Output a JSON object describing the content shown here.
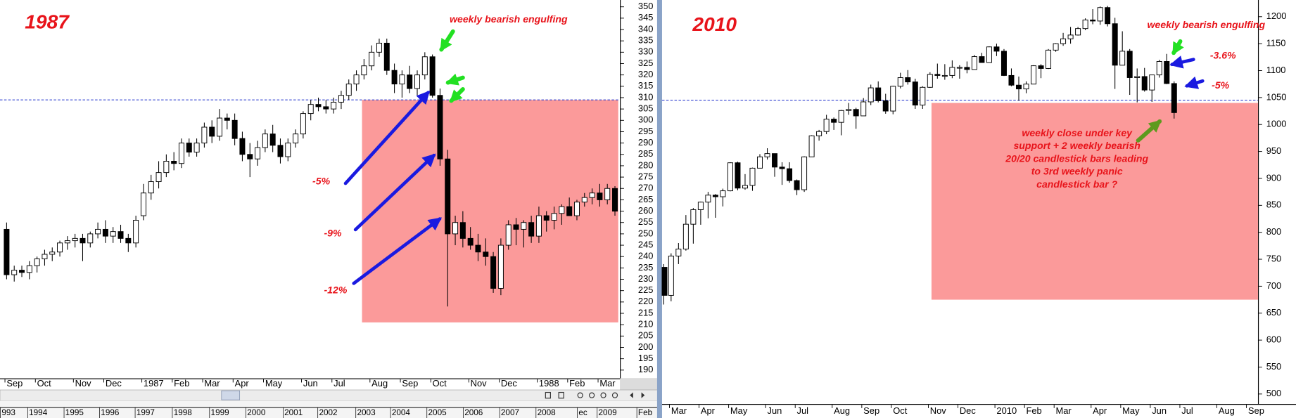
{
  "chart_data": [
    {
      "type": "candlestick",
      "title": "1987",
      "ylim": [
        186,
        353
      ],
      "yticks": [
        190,
        195,
        200,
        205,
        210,
        215,
        220,
        225,
        230,
        235,
        240,
        245,
        250,
        255,
        260,
        265,
        270,
        275,
        280,
        285,
        290,
        295,
        300,
        305,
        310,
        315,
        320,
        325,
        330,
        335,
        340,
        345,
        350
      ],
      "reference_line": 309,
      "reference_color": "#3040d0",
      "zone": [
        211,
        309
      ],
      "zone_color": "#fb9a9a",
      "up_color": "#ffffff",
      "down_color": "#000000",
      "annotations": [
        "weekly bearish engulfing",
        "-5%",
        "-9%",
        "-12%"
      ],
      "categories": [
        "Sep",
        null,
        null,
        null,
        "Oct",
        null,
        null,
        null,
        null,
        "Nov",
        null,
        null,
        null,
        "Dec",
        null,
        null,
        null,
        null,
        "1987",
        null,
        null,
        null,
        "Feb",
        null,
        null,
        null,
        "Mar",
        null,
        null,
        null,
        "Apr",
        null,
        null,
        null,
        "May",
        null,
        null,
        null,
        null,
        "Jun",
        null,
        null,
        null,
        "Jul",
        null,
        null,
        null,
        null,
        "Aug",
        null,
        null,
        null,
        "Sep",
        null,
        null,
        null,
        "Oct",
        null,
        null,
        null,
        null,
        "Nov",
        null,
        null,
        null,
        "Dec",
        null,
        null,
        null,
        null,
        "1988",
        null,
        null,
        null,
        "Feb",
        null,
        null,
        null,
        "Mar",
        null,
        null
      ],
      "ohlc": [
        [
          252,
          255,
          230,
          232
        ],
        [
          232,
          236,
          229,
          234
        ],
        [
          234,
          236,
          231,
          233
        ],
        [
          233,
          238,
          230,
          236
        ],
        [
          236,
          240,
          233,
          239
        ],
        [
          239,
          243,
          236,
          241
        ],
        [
          241,
          244,
          238,
          242
        ],
        [
          242,
          247,
          240,
          246
        ],
        [
          246,
          249,
          243,
          247
        ],
        [
          247,
          250,
          244,
          248
        ],
        [
          248,
          250,
          238,
          246
        ],
        [
          246,
          251,
          244,
          250
        ],
        [
          250,
          255,
          248,
          252
        ],
        [
          252,
          256,
          246,
          249
        ],
        [
          249,
          253,
          246,
          251
        ],
        [
          251,
          254,
          246,
          248
        ],
        [
          248,
          250,
          242,
          246
        ],
        [
          246,
          258,
          244,
          256
        ],
        [
          258,
          272,
          256,
          268
        ],
        [
          268,
          276,
          265,
          273
        ],
        [
          273,
          282,
          270,
          277
        ],
        [
          277,
          285,
          275,
          282
        ],
        [
          282,
          286,
          278,
          281
        ],
        [
          281,
          292,
          279,
          290
        ],
        [
          290,
          292,
          284,
          286
        ],
        [
          286,
          292,
          284,
          290
        ],
        [
          290,
          299,
          288,
          297
        ],
        [
          297,
          300,
          290,
          293
        ],
        [
          293,
          305,
          291,
          301
        ],
        [
          301,
          303,
          296,
          300
        ],
        [
          300,
          303,
          289,
          292
        ],
        [
          292,
          295,
          282,
          285
        ],
        [
          285,
          290,
          275,
          283
        ],
        [
          283,
          291,
          280,
          288
        ],
        [
          288,
          296,
          286,
          294
        ],
        [
          294,
          298,
          286,
          289
        ],
        [
          289,
          292,
          281,
          284
        ],
        [
          284,
          292,
          282,
          290
        ],
        [
          290,
          296,
          288,
          294
        ],
        [
          294,
          304,
          292,
          303
        ],
        [
          303,
          309,
          300,
          307
        ],
        [
          307,
          310,
          304,
          306
        ],
        [
          306,
          309,
          303,
          305
        ],
        [
          305,
          310,
          303,
          308
        ],
        [
          308,
          313,
          305,
          311
        ],
        [
          311,
          318,
          309,
          316
        ],
        [
          316,
          322,
          313,
          320
        ],
        [
          320,
          327,
          318,
          324
        ],
        [
          324,
          333,
          322,
          330
        ],
        [
          330,
          336,
          328,
          334
        ],
        [
          334,
          336,
          320,
          322
        ],
        [
          322,
          325,
          312,
          316
        ],
        [
          316,
          322,
          310,
          320
        ],
        [
          320,
          324,
          312,
          314
        ],
        [
          314,
          322,
          311,
          320
        ],
        [
          320,
          330,
          318,
          328
        ],
        [
          328,
          329,
          310,
          311
        ],
        [
          311,
          314,
          280,
          283
        ],
        [
          283,
          287,
          218,
          250
        ],
        [
          250,
          258,
          245,
          255
        ],
        [
          255,
          260,
          244,
          248
        ],
        [
          248,
          253,
          243,
          245
        ],
        [
          245,
          250,
          238,
          242
        ],
        [
          242,
          248,
          236,
          240
        ],
        [
          240,
          242,
          224,
          226
        ],
        [
          226,
          248,
          223,
          245
        ],
        [
          245,
          256,
          243,
          254
        ],
        [
          254,
          257,
          245,
          252
        ],
        [
          252,
          256,
          244,
          255
        ],
        [
          255,
          258,
          246,
          249
        ],
        [
          249,
          262,
          246,
          258
        ],
        [
          258,
          260,
          251,
          256
        ],
        [
          256,
          262,
          252,
          259
        ],
        [
          259,
          263,
          254,
          262
        ],
        [
          262,
          266,
          259,
          258
        ],
        [
          258,
          265,
          256,
          264
        ],
        [
          264,
          268,
          262,
          266
        ],
        [
          266,
          270,
          263,
          268
        ],
        [
          268,
          272,
          262,
          265
        ],
        [
          265,
          272,
          263,
          270
        ],
        [
          270,
          271,
          258,
          260
        ]
      ]
    },
    {
      "type": "candlestick",
      "title": "2010",
      "ylim": [
        480,
        1231
      ],
      "yticks": [
        500,
        550,
        600,
        650,
        700,
        750,
        800,
        850,
        900,
        950,
        1000,
        1050,
        1100,
        1150,
        1200
      ],
      "reference_line": 1045,
      "reference_color": "#3040d0",
      "zone": [
        675,
        1040
      ],
      "zone_color": "#fb9a9a",
      "up_color": "#ffffff",
      "down_color": "#000000",
      "annotations": [
        "weekly bearish engulfing",
        "-3.6%",
        "-5%"
      ],
      "note": [
        "weekly close under key",
        "support + 2 weekly bearish",
        "20/20 candlestick bars leading",
        "to 3rd weekly panic",
        "candlestick bar ?"
      ],
      "categories": [
        null,
        "Mar",
        null,
        null,
        null,
        "Apr",
        null,
        null,
        null,
        "May",
        null,
        null,
        null,
        null,
        "Jun",
        null,
        null,
        null,
        "Jul",
        null,
        null,
        null,
        null,
        "Aug",
        null,
        null,
        null,
        "Sep",
        null,
        null,
        null,
        "Oct",
        null,
        null,
        null,
        null,
        "Nov",
        null,
        null,
        null,
        "Dec",
        null,
        null,
        null,
        null,
        "2010",
        null,
        null,
        null,
        "Feb",
        null,
        null,
        null,
        "Mar",
        null,
        null,
        null,
        null,
        "Apr",
        null,
        null,
        null,
        "May",
        null,
        null,
        null,
        "Jun",
        null,
        null,
        null,
        "Jul",
        null,
        null,
        null,
        null,
        "Aug",
        null,
        null,
        null,
        "Sep"
      ],
      "ohlc": [
        [
          735,
          741,
          666,
          683
        ],
        [
          683,
          761,
          672,
          756
        ],
        [
          756,
          780,
          741,
          769
        ],
        [
          769,
          832,
          766,
          815
        ],
        [
          815,
          845,
          779,
          842
        ],
        [
          842,
          857,
          814,
          856
        ],
        [
          856,
          875,
          826,
          869
        ],
        [
          869,
          871,
          827,
          866
        ],
        [
          866,
          881,
          848,
          877
        ],
        [
          877,
          930,
          876,
          929
        ],
        [
          929,
          931,
          878,
          882
        ],
        [
          882,
          908,
          879,
          887
        ],
        [
          887,
          920,
          877,
          919
        ],
        [
          919,
          945,
          919,
          940
        ],
        [
          940,
          956,
          935,
          946
        ],
        [
          946,
          946,
          903,
          921
        ],
        [
          921,
          930,
          888,
          918
        ],
        [
          918,
          930,
          892,
          896
        ],
        [
          896,
          898,
          869,
          879
        ],
        [
          879,
          941,
          875,
          940
        ],
        [
          940,
          980,
          940,
          979
        ],
        [
          979,
          990,
          970,
          987
        ],
        [
          987,
          1018,
          982,
          1010
        ],
        [
          1010,
          1013,
          990,
          1004
        ],
        [
          1004,
          1027,
          980,
          1026
        ],
        [
          1026,
          1040,
          1018,
          1028
        ],
        [
          1028,
          1031,
          992,
          1016
        ],
        [
          1016,
          1049,
          1016,
          1042
        ],
        [
          1042,
          1074,
          1036,
          1068
        ],
        [
          1068,
          1080,
          1041,
          1044
        ],
        [
          1044,
          1057,
          1020,
          1025
        ],
        [
          1025,
          1072,
          1019,
          1071
        ],
        [
          1071,
          1096,
          1067,
          1087
        ],
        [
          1087,
          1101,
          1074,
          1079
        ],
        [
          1079,
          1085,
          1029,
          1036
        ],
        [
          1036,
          1071,
          1029,
          1069
        ],
        [
          1069,
          1097,
          1068,
          1093
        ],
        [
          1093,
          1113,
          1085,
          1091
        ],
        [
          1091,
          1112,
          1083,
          1091
        ],
        [
          1091,
          1119,
          1086,
          1106
        ],
        [
          1106,
          1110,
          1085,
          1106
        ],
        [
          1106,
          1117,
          1095,
          1102
        ],
        [
          1102,
          1129,
          1102,
          1126
        ],
        [
          1126,
          1133,
          1115,
          1115
        ],
        [
          1115,
          1145,
          1115,
          1144
        ],
        [
          1144,
          1150,
          1127,
          1136
        ],
        [
          1136,
          1140,
          1090,
          1091
        ],
        [
          1091,
          1104,
          1071,
          1073
        ],
        [
          1073,
          1089,
          1044,
          1066
        ],
        [
          1066,
          1080,
          1058,
          1075
        ],
        [
          1075,
          1110,
          1075,
          1109
        ],
        [
          1109,
          1112,
          1086,
          1104
        ],
        [
          1104,
          1140,
          1103,
          1138
        ],
        [
          1138,
          1151,
          1135,
          1150
        ],
        [
          1150,
          1170,
          1146,
          1159
        ],
        [
          1159,
          1181,
          1150,
          1166
        ],
        [
          1166,
          1181,
          1165,
          1178
        ],
        [
          1178,
          1197,
          1175,
          1194
        ],
        [
          1194,
          1214,
          1186,
          1192
        ],
        [
          1192,
          1219,
          1185,
          1217
        ],
        [
          1217,
          1220,
          1182,
          1187
        ],
        [
          1187,
          1198,
          1066,
          1110
        ],
        [
          1110,
          1173,
          1110,
          1136
        ],
        [
          1136,
          1140,
          1055,
          1087
        ],
        [
          1087,
          1104,
          1041,
          1089
        ],
        [
          1089,
          1105,
          1061,
          1064
        ],
        [
          1064,
          1092,
          1042,
          1092
        ],
        [
          1092,
          1120,
          1087,
          1117
        ],
        [
          1117,
          1131,
          1075,
          1076
        ],
        [
          1076,
          1080,
          1011,
          1022
        ],
        null,
        null,
        null,
        null,
        null,
        null,
        null,
        null,
        null,
        null
      ]
    }
  ],
  "overview_labels": [
    "993",
    "1994",
    "1995",
    "1996",
    "1997",
    "1998",
    "1999",
    "2000",
    "2001",
    "2002",
    "2003",
    "2004",
    "2005",
    "2006",
    "2007",
    "2008",
    "ec",
    "2009",
    "Feb"
  ]
}
